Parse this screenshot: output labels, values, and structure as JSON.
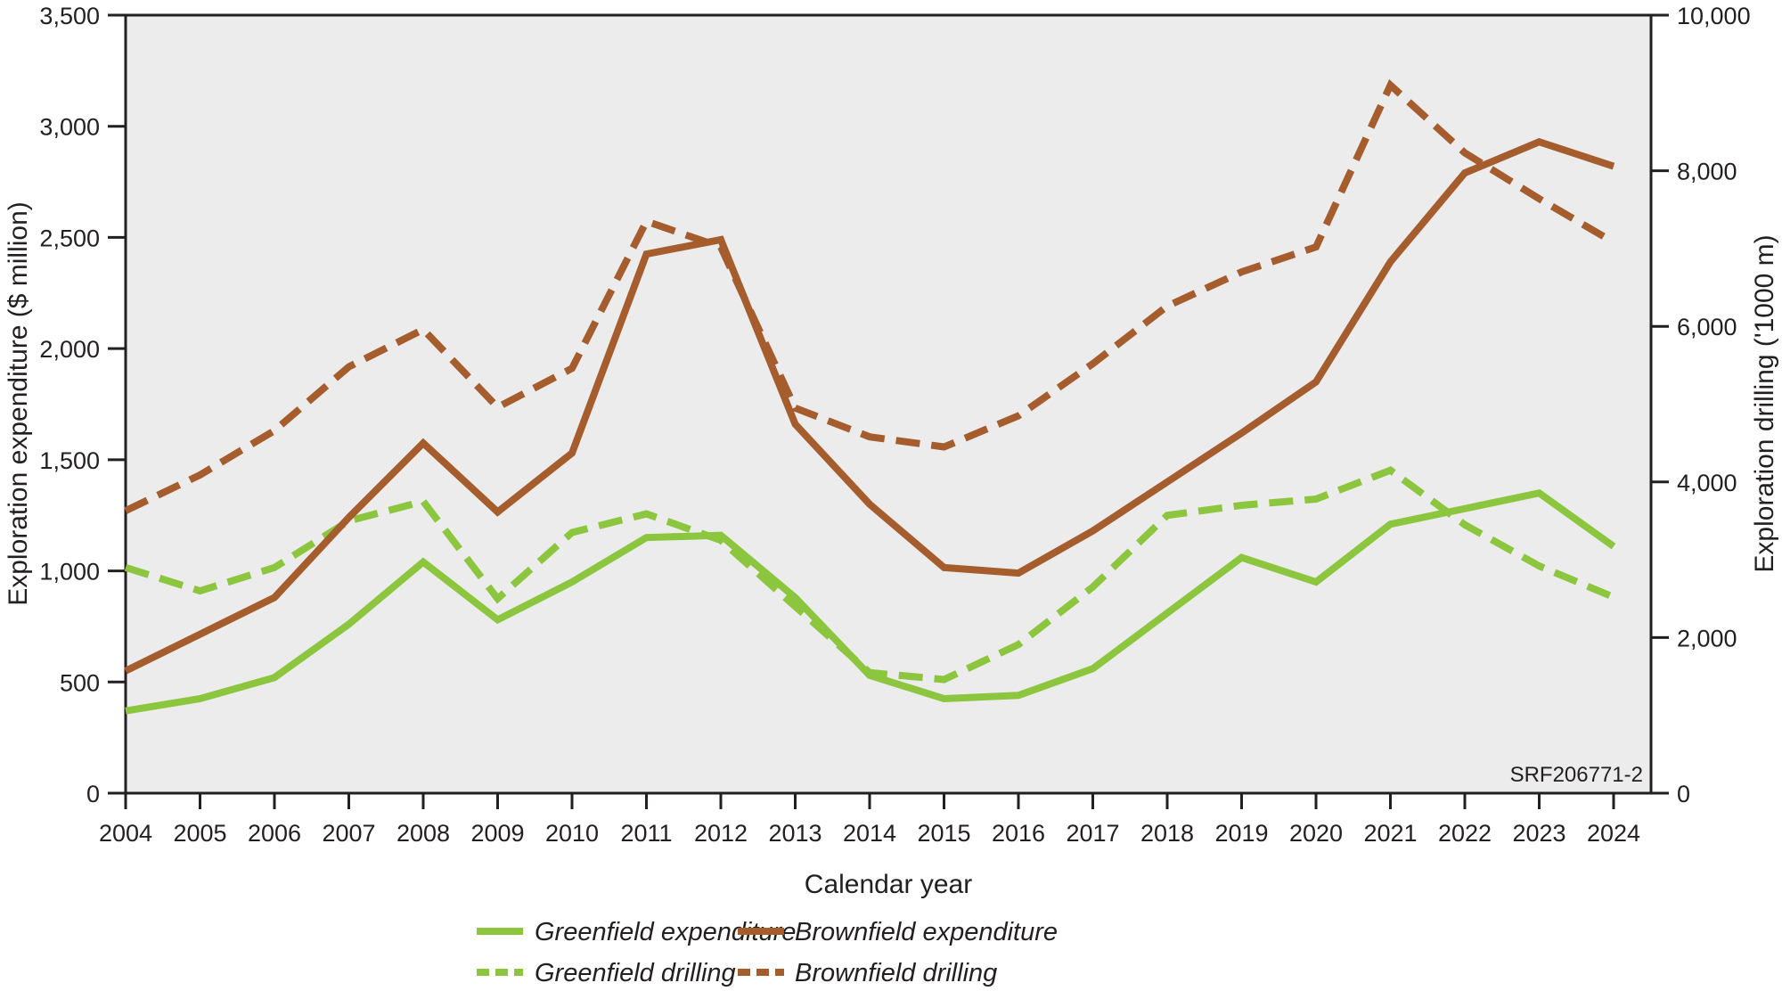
{
  "chart_data": {
    "type": "line",
    "categories": [
      "2004",
      "2005",
      "2006",
      "2007",
      "2008",
      "2009",
      "2010",
      "2011",
      "2012",
      "2013",
      "2014",
      "2015",
      "2016",
      "2017",
      "2018",
      "2019",
      "2020",
      "2021",
      "2022",
      "2023",
      "2024"
    ],
    "series": [
      {
        "name": "Greenfield expenditure",
        "slug": "greenfield-expenditure",
        "axis": "left",
        "style": "solid",
        "color": "#8CC63F",
        "values": [
          370,
          425,
          520,
          760,
          1040,
          780,
          950,
          1150,
          1160,
          880,
          530,
          425,
          440,
          560,
          810,
          1060,
          950,
          1210,
          1280,
          1350,
          1110
        ]
      },
      {
        "name": "Brownfield expenditure",
        "slug": "brownfield-expenditure",
        "axis": "left",
        "style": "solid",
        "color": "#A55D2E",
        "values": [
          550,
          715,
          880,
          1240,
          1575,
          1265,
          1530,
          2425,
          2490,
          1660,
          1300,
          1015,
          990,
          1180,
          1400,
          1620,
          1850,
          2390,
          2790,
          2930,
          2820
        ]
      },
      {
        "name": "Greenfield drilling",
        "slug": "greenfield-drilling",
        "axis": "right",
        "style": "dashed",
        "color": "#8CC63F",
        "values": [
          2900,
          2600,
          2900,
          3500,
          3750,
          2500,
          3350,
          3590,
          3250,
          2400,
          1550,
          1460,
          1910,
          2650,
          3570,
          3700,
          3780,
          4150,
          3450,
          2920,
          2520
        ]
      },
      {
        "name": "Brownfield drilling",
        "slug": "brownfield-drilling",
        "axis": "right",
        "style": "dashed",
        "color": "#A55D2E",
        "values": [
          3630,
          4090,
          4660,
          5480,
          5960,
          4960,
          5460,
          7350,
          7020,
          4950,
          4580,
          4450,
          4850,
          5520,
          6260,
          6700,
          7020,
          9100,
          8230,
          7640,
          7080
        ]
      }
    ],
    "left_axis": {
      "label": "Exploration expenditure ($ million)",
      "min": 0,
      "max": 3500,
      "tick_step": 500,
      "tick_labels": [
        "0",
        "500",
        "1,000",
        "1,500",
        "2,000",
        "2,500",
        "3,000",
        "3,500"
      ]
    },
    "right_axis": {
      "label": "Exploration drilling ('1000 m)",
      "min": 0,
      "max": 10000,
      "tick_step": 2000,
      "tick_labels": [
        "0",
        "2,000",
        "4,000",
        "6,000",
        "8,000",
        "10,000"
      ]
    },
    "x_axis": {
      "label": "Calendar year"
    },
    "note": "SRF206771-2",
    "legend": [
      {
        "label": "Greenfield expenditure",
        "style": "solid",
        "color": "#8CC63F"
      },
      {
        "label": "Brownfield expenditure",
        "style": "solid",
        "color": "#A55D2E"
      },
      {
        "label": "Greenfield drilling",
        "style": "dashed",
        "color": "#8CC63F"
      },
      {
        "label": "Brownfield drilling",
        "style": "dashed",
        "color": "#A55D2E"
      }
    ],
    "colors": {
      "green": "#8CC63F",
      "brown": "#A55D2E",
      "plot_background": "#ECECEC",
      "axis": "#231F20"
    },
    "grid": "off",
    "legend_position": "bottom"
  }
}
